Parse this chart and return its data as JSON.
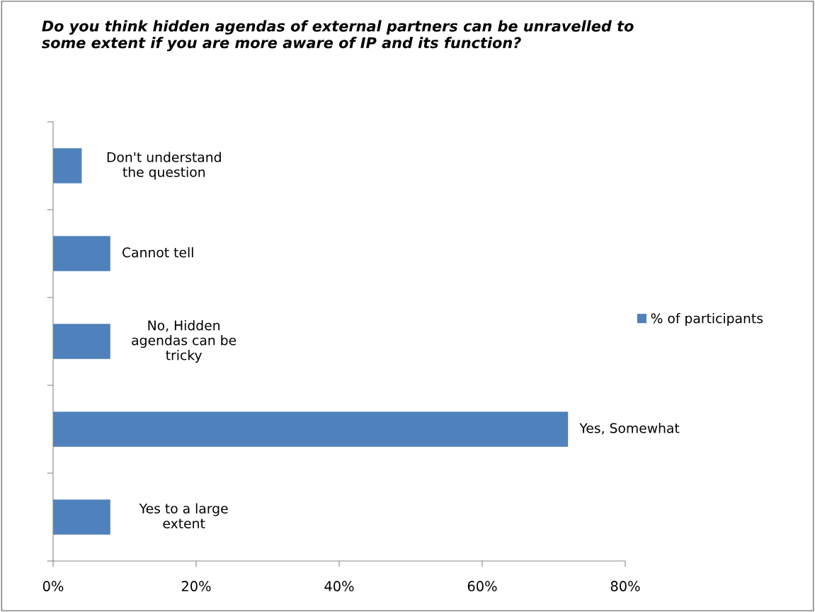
{
  "chart_data": {
    "type": "bar",
    "orientation": "horizontal",
    "title": "Do you think hidden agendas of external partners can be unravelled to\nsome extent if you are more aware of IP and its function?",
    "categories": [
      "Don't understand\nthe question",
      "Cannot tell",
      "No, Hidden\nagendas can be\ntricky",
      "Yes, Somewhat",
      "Yes to a large\nextent"
    ],
    "series": [
      {
        "name": "% of participants",
        "color": "#4f81bd",
        "values": [
          4,
          8,
          8,
          72,
          8
        ]
      }
    ],
    "xlim": [
      0,
      80
    ],
    "xticks": [
      {
        "value": 0,
        "label": "0%"
      },
      {
        "value": 20,
        "label": "20%"
      },
      {
        "value": 40,
        "label": "40%"
      },
      {
        "value": 60,
        "label": "60%"
      },
      {
        "value": 80,
        "label": "80%"
      }
    ],
    "grid": false,
    "legend": "right"
  }
}
